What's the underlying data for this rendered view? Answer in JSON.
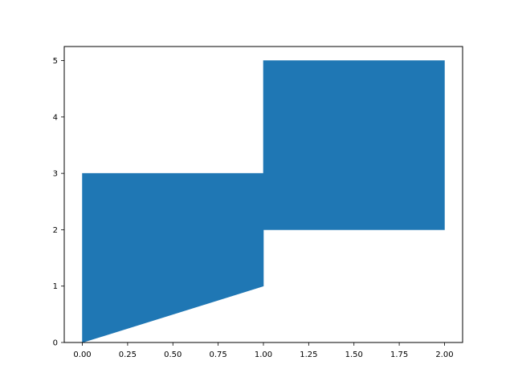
{
  "chart_data": {
    "type": "area",
    "title": "",
    "xlabel": "",
    "ylabel": "",
    "xlim": [
      -0.1,
      2.1
    ],
    "ylim": [
      0,
      5.25
    ],
    "grid": false,
    "legend": "none",
    "x_ticks": [
      0.0,
      0.25,
      0.5,
      0.75,
      1.0,
      1.25,
      1.5,
      1.75,
      2.0
    ],
    "x_tick_labels": [
      "0.00",
      "0.25",
      "0.50",
      "0.75",
      "1.00",
      "1.25",
      "1.50",
      "1.75",
      "2.00"
    ],
    "y_ticks": [
      0,
      1,
      2,
      3,
      4,
      5
    ],
    "y_tick_labels": [
      "0",
      "1",
      "2",
      "3",
      "4",
      "5"
    ],
    "series": [
      {
        "fill_color": "#1f77b4",
        "points": [
          {
            "x": 0,
            "y_lower": 0,
            "y_upper": 3
          },
          {
            "x": 1,
            "y_lower": 1,
            "y_upper": 3
          },
          {
            "x": 1,
            "y_lower": 2,
            "y_upper": 5
          },
          {
            "x": 2,
            "y_lower": 2,
            "y_upper": 5
          }
        ]
      }
    ]
  }
}
